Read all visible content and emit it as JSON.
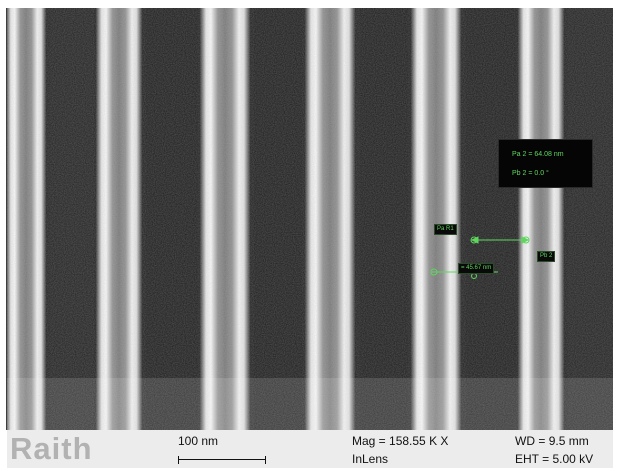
{
  "image": {
    "subject": "sem-micrograph-vertical-line-gratings",
    "colors": {
      "background": "#1e1e1e",
      "line_edge": "#f2f2f2",
      "measurement": "#5fd65f"
    }
  },
  "measurements": {
    "panel_line1": "Pa 2 = 64.08 nm",
    "panel_line2": "Pb 2 =   0.0 °",
    "tag_pa": "Pa R1",
    "tag_pb": "Pb 2",
    "width_tag": "= 45.67 nm"
  },
  "info_bar": {
    "logo": "Raith",
    "scale_label": "100 nm",
    "mag_label": "Mag =",
    "mag_value": "158.55 K X",
    "detector": "InLens",
    "wd_label": "WD =",
    "wd_value": "9.5 mm",
    "eht_label": "EHT =",
    "eht_value": "5.00 kV"
  }
}
